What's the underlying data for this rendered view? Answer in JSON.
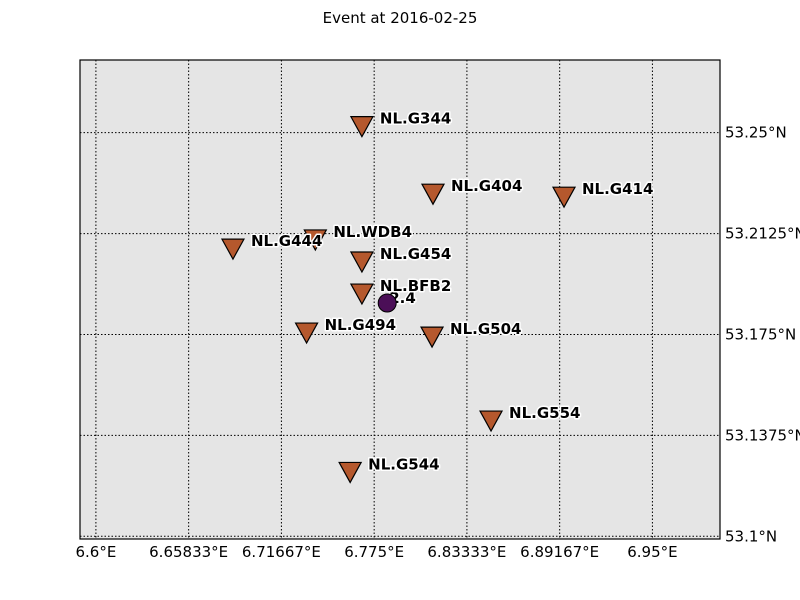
{
  "title": "Event at 2016-02-25",
  "colors": {
    "background": "#e5e5e5",
    "station_fill": "#b5582d",
    "event_fill": "#4b0f57",
    "grid": "#000000"
  },
  "map": {
    "lon_range": [
      6.59,
      6.9925
    ],
    "lat_range": [
      53.099,
      53.277
    ],
    "lon_ticks": [
      {
        "value": 6.6,
        "label": "6.6°E"
      },
      {
        "value": 6.65833,
        "label": "6.65833°E"
      },
      {
        "value": 6.71667,
        "label": "6.71667°E"
      },
      {
        "value": 6.775,
        "label": "6.775°E"
      },
      {
        "value": 6.83333,
        "label": "6.83333°E"
      },
      {
        "value": 6.89167,
        "label": "6.89167°E"
      },
      {
        "value": 6.95,
        "label": "6.95°E"
      }
    ],
    "lat_ticks": [
      {
        "value": 53.25,
        "label": "53.25°N"
      },
      {
        "value": 53.2125,
        "label": "53.2125°N"
      },
      {
        "value": 53.175,
        "label": "53.175°N"
      },
      {
        "value": 53.1375,
        "label": "53.1375°N"
      },
      {
        "value": 53.1,
        "label": "53.1°N"
      }
    ],
    "grid": true,
    "stations": [
      {
        "name": "NL.G344",
        "lon": 6.7673,
        "lat": 53.2526
      },
      {
        "name": "NL.G404",
        "lon": 6.812,
        "lat": 53.2275
      },
      {
        "name": "NL.G414",
        "lon": 6.8944,
        "lat": 53.2264
      },
      {
        "name": "NL.WDB4",
        "lon": 6.738,
        "lat": 53.2105
      },
      {
        "name": "NL.G444",
        "lon": 6.6862,
        "lat": 53.2071
      },
      {
        "name": "NL.G454",
        "lon": 6.7673,
        "lat": 53.2023
      },
      {
        "name": "NL.BFB2",
        "lon": 6.7673,
        "lat": 53.1904
      },
      {
        "name": "NL.G494",
        "lon": 6.7325,
        "lat": 53.1759
      },
      {
        "name": "NL.G504",
        "lon": 6.8114,
        "lat": 53.1744
      },
      {
        "name": "NL.G554",
        "lon": 6.8485,
        "lat": 53.1432
      },
      {
        "name": "NL.G544",
        "lon": 6.7599,
        "lat": 53.1241
      }
    ],
    "event": {
      "label": "2.4",
      "lon": 6.7832,
      "lat": 53.1867
    }
  }
}
